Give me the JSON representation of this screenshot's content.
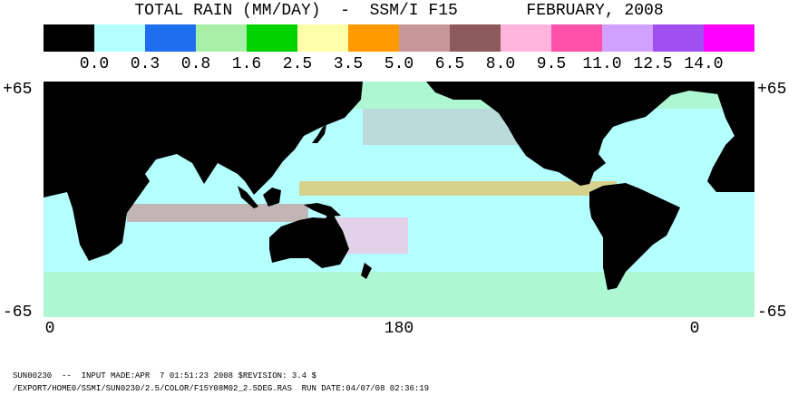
{
  "title": "TOTAL RAIN (MM/DAY)  -  SSM/I F15       FEBRUARY, 2008",
  "legend": {
    "colors": [
      "#000000",
      "#b4ffff",
      "#1e6ef0",
      "#a8f0a8",
      "#00d200",
      "#ffffaa",
      "#ff9a00",
      "#c89696",
      "#8c5a5a",
      "#ffb4dc",
      "#ff50aa",
      "#d2a0ff",
      "#a050f0",
      "#ff00ff"
    ],
    "labels": [
      "0.0",
      "0.3",
      "0.8",
      "1.6",
      "2.5",
      "3.5",
      "5.0",
      "6.5",
      "8.0",
      "9.5",
      "11.0",
      "12.5",
      "14.0"
    ]
  },
  "map": {
    "lat_top": "+65",
    "lat_bottom": "-65",
    "lon_labels": [
      "0",
      "180",
      "0"
    ]
  },
  "footer": [
    "SUN00230  --  INPUT MADE:APR  7 01:51:23 2008 $REVISION: 3.4 $",
    "/EXPORT/HOME0/SSMI/SUN0230/2.5/COLOR/F15Y08M02_2.5DEG.RAS  RUN DATE:04/07/08 02:36:19"
  ]
}
